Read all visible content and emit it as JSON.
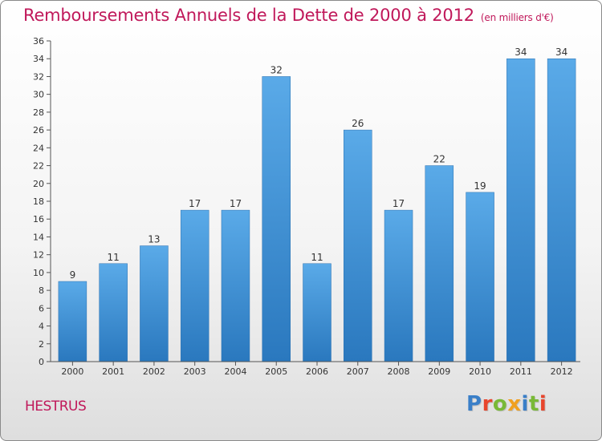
{
  "title": "Remboursements Annuels de la Dette de 2000 à 2012",
  "unit": "(en milliers d'€)",
  "city": "HESTRUS",
  "logo": {
    "letters": [
      "P",
      "r",
      "o",
      "x",
      "i",
      "t",
      "i"
    ],
    "colors": [
      "#3a7fc8",
      "#e8452c",
      "#79b936",
      "#f0a020",
      "#3a7fc8",
      "#79b936",
      "#e8452c"
    ]
  },
  "chart_data": {
    "type": "bar",
    "categories": [
      "2000",
      "2001",
      "2002",
      "2003",
      "2004",
      "2005",
      "2006",
      "2007",
      "2008",
      "2009",
      "2010",
      "2011",
      "2012"
    ],
    "values": [
      9,
      11,
      13,
      17,
      17,
      32,
      11,
      26,
      17,
      22,
      19,
      34,
      34
    ],
    "ylim": [
      0,
      36
    ],
    "yticks": [
      0,
      2,
      4,
      6,
      8,
      10,
      12,
      14,
      16,
      18,
      20,
      22,
      24,
      26,
      28,
      30,
      32,
      34,
      36
    ],
    "grid": false,
    "bar_color": "#3b8fd6"
  }
}
